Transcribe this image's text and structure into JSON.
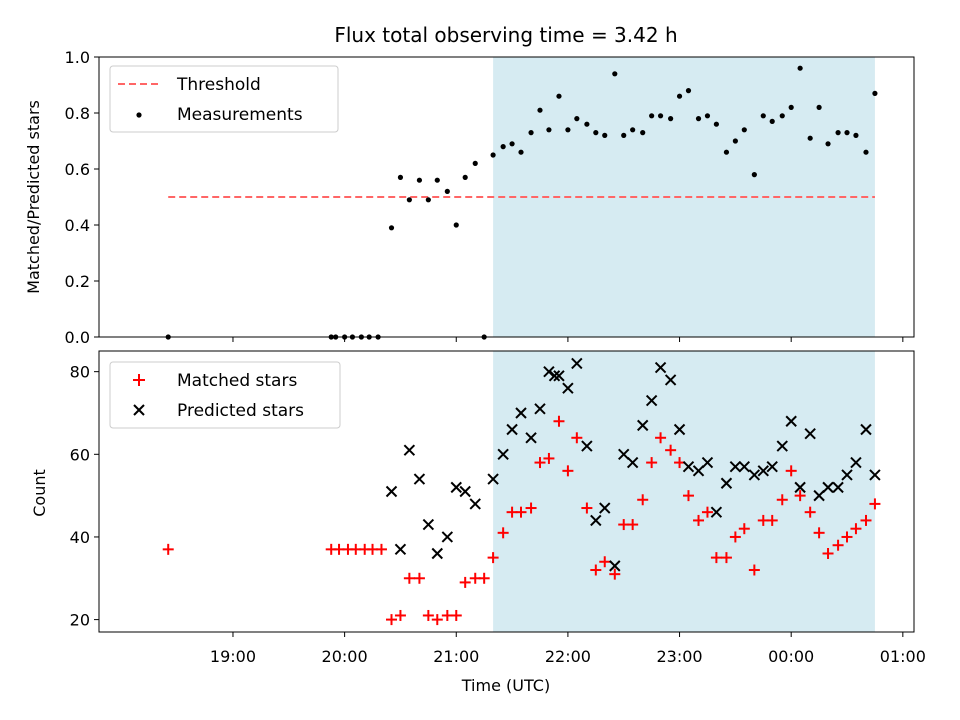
{
  "chart_data": [
    {
      "type": "scatter",
      "title": "Flux total observing time = 3.42 h",
      "ylabel": "Matched/Predicted stars",
      "xlabel": "",
      "x_unit": "hours since 18:00 UTC",
      "xlim": [
        17.8,
        25.1
      ],
      "ylim": [
        0.0,
        1.0
      ],
      "yticks": [
        0.0,
        0.2,
        0.4,
        0.6,
        0.8,
        1.0
      ],
      "ytick_labels": [
        "0.0",
        "0.2",
        "0.4",
        "0.6",
        "0.8",
        "1.0"
      ],
      "shaded_region": {
        "x": [
          21.33,
          24.75
        ],
        "color": "#add8e6"
      },
      "legend": {
        "position": "upper left",
        "entries": [
          "Threshold",
          "Measurements"
        ]
      },
      "series": [
        {
          "name": "Threshold",
          "kind": "line",
          "style": "dashed",
          "color": "#ff6666",
          "x": [
            18.42,
            24.75
          ],
          "y": [
            0.5,
            0.5
          ]
        },
        {
          "name": "Measurements",
          "kind": "points",
          "color": "#000000",
          "points": [
            [
              18.42,
              0.0
            ],
            [
              19.88,
              0.0
            ],
            [
              19.92,
              0.0
            ],
            [
              20.0,
              0.0
            ],
            [
              20.07,
              0.0
            ],
            [
              20.15,
              0.0
            ],
            [
              20.22,
              0.0
            ],
            [
              20.3,
              0.0
            ],
            [
              21.25,
              0.0
            ],
            [
              20.42,
              0.39
            ],
            [
              20.5,
              0.57
            ],
            [
              20.58,
              0.49
            ],
            [
              20.67,
              0.56
            ],
            [
              20.75,
              0.49
            ],
            [
              20.83,
              0.56
            ],
            [
              20.92,
              0.52
            ],
            [
              21.0,
              0.4
            ],
            [
              21.08,
              0.57
            ],
            [
              21.17,
              0.62
            ],
            [
              21.33,
              0.65
            ],
            [
              21.42,
              0.68
            ],
            [
              21.5,
              0.69
            ],
            [
              21.58,
              0.66
            ],
            [
              21.67,
              0.73
            ],
            [
              21.75,
              0.81
            ],
            [
              21.83,
              0.74
            ],
            [
              21.92,
              0.86
            ],
            [
              22.0,
              0.74
            ],
            [
              22.08,
              0.78
            ],
            [
              22.17,
              0.76
            ],
            [
              22.25,
              0.73
            ],
            [
              22.33,
              0.72
            ],
            [
              22.42,
              0.94
            ],
            [
              22.5,
              0.72
            ],
            [
              22.58,
              0.74
            ],
            [
              22.67,
              0.73
            ],
            [
              22.75,
              0.79
            ],
            [
              22.83,
              0.79
            ],
            [
              22.92,
              0.78
            ],
            [
              23.0,
              0.86
            ],
            [
              23.08,
              0.88
            ],
            [
              23.17,
              0.78
            ],
            [
              23.25,
              0.79
            ],
            [
              23.33,
              0.76
            ],
            [
              23.42,
              0.66
            ],
            [
              23.5,
              0.7
            ],
            [
              23.58,
              0.74
            ],
            [
              23.67,
              0.58
            ],
            [
              23.75,
              0.79
            ],
            [
              23.83,
              0.77
            ],
            [
              23.92,
              0.79
            ],
            [
              24.0,
              0.82
            ],
            [
              24.08,
              0.96
            ],
            [
              24.17,
              0.71
            ],
            [
              24.25,
              0.82
            ],
            [
              24.33,
              0.69
            ],
            [
              24.42,
              0.73
            ],
            [
              24.5,
              0.73
            ],
            [
              24.58,
              0.72
            ],
            [
              24.67,
              0.66
            ],
            [
              24.75,
              0.87
            ]
          ]
        }
      ]
    },
    {
      "type": "scatter",
      "title": "",
      "ylabel": "Count",
      "xlabel": "Time (UTC)",
      "x_unit": "hours since 18:00 UTC",
      "xlim": [
        17.8,
        25.1
      ],
      "ylim": [
        17,
        85
      ],
      "yticks": [
        20,
        40,
        60,
        80
      ],
      "ytick_labels": [
        "20",
        "40",
        "60",
        "80"
      ],
      "xticks": [
        19,
        20,
        21,
        22,
        23,
        24,
        25
      ],
      "xtick_labels": [
        "19:00",
        "20:00",
        "21:00",
        "22:00",
        "23:00",
        "00:00",
        "01:00"
      ],
      "shaded_region": {
        "x": [
          21.33,
          24.75
        ],
        "color": "#add8e6"
      },
      "legend": {
        "position": "upper left",
        "entries": [
          "Matched stars",
          "Predicted stars"
        ]
      },
      "series": [
        {
          "name": "Matched stars",
          "marker": "plus",
          "color": "#ff0000",
          "points": [
            [
              18.42,
              37
            ],
            [
              19.88,
              37
            ],
            [
              19.95,
              37
            ],
            [
              20.03,
              37
            ],
            [
              20.1,
              37
            ],
            [
              20.18,
              37
            ],
            [
              20.25,
              37
            ],
            [
              20.33,
              37
            ],
            [
              20.42,
              20
            ],
            [
              20.5,
              21
            ],
            [
              20.58,
              30
            ],
            [
              20.67,
              30
            ],
            [
              20.75,
              21
            ],
            [
              20.83,
              20
            ],
            [
              20.92,
              21
            ],
            [
              21.0,
              21
            ],
            [
              21.08,
              29
            ],
            [
              21.17,
              30
            ],
            [
              21.25,
              30
            ],
            [
              21.33,
              35
            ],
            [
              21.42,
              41
            ],
            [
              21.5,
              46
            ],
            [
              21.58,
              46
            ],
            [
              21.67,
              47
            ],
            [
              21.75,
              58
            ],
            [
              21.83,
              59
            ],
            [
              21.92,
              68
            ],
            [
              22.0,
              56
            ],
            [
              22.08,
              64
            ],
            [
              22.17,
              47
            ],
            [
              22.25,
              32
            ],
            [
              22.33,
              34
            ],
            [
              22.42,
              31
            ],
            [
              22.5,
              43
            ],
            [
              22.58,
              43
            ],
            [
              22.67,
              49
            ],
            [
              22.75,
              58
            ],
            [
              22.83,
              64
            ],
            [
              22.92,
              61
            ],
            [
              23.0,
              58
            ],
            [
              23.08,
              50
            ],
            [
              23.17,
              44
            ],
            [
              23.25,
              46
            ],
            [
              23.33,
              35
            ],
            [
              23.42,
              35
            ],
            [
              23.5,
              40
            ],
            [
              23.58,
              42
            ],
            [
              23.67,
              32
            ],
            [
              23.75,
              44
            ],
            [
              23.83,
              44
            ],
            [
              23.92,
              49
            ],
            [
              24.0,
              56
            ],
            [
              24.08,
              50
            ],
            [
              24.17,
              46
            ],
            [
              24.25,
              41
            ],
            [
              24.33,
              36
            ],
            [
              24.42,
              38
            ],
            [
              24.5,
              40
            ],
            [
              24.58,
              42
            ],
            [
              24.67,
              44
            ],
            [
              24.75,
              48
            ]
          ]
        },
        {
          "name": "Predicted stars",
          "marker": "x",
          "color": "#000000",
          "points": [
            [
              20.42,
              51
            ],
            [
              20.5,
              37
            ],
            [
              20.58,
              61
            ],
            [
              20.67,
              54
            ],
            [
              20.75,
              43
            ],
            [
              20.83,
              36
            ],
            [
              20.92,
              40
            ],
            [
              21.0,
              52
            ],
            [
              21.08,
              51
            ],
            [
              21.17,
              48
            ],
            [
              21.33,
              54
            ],
            [
              21.42,
              60
            ],
            [
              21.5,
              66
            ],
            [
              21.58,
              70
            ],
            [
              21.67,
              64
            ],
            [
              21.75,
              71
            ],
            [
              21.83,
              80
            ],
            [
              21.88,
              79
            ],
            [
              21.92,
              79
            ],
            [
              22.0,
              76
            ],
            [
              22.08,
              82
            ],
            [
              22.17,
              62
            ],
            [
              22.25,
              44
            ],
            [
              22.33,
              47
            ],
            [
              22.42,
              33
            ],
            [
              22.5,
              60
            ],
            [
              22.58,
              58
            ],
            [
              22.67,
              67
            ],
            [
              22.75,
              73
            ],
            [
              22.83,
              81
            ],
            [
              22.92,
              78
            ],
            [
              23.0,
              66
            ],
            [
              23.08,
              57
            ],
            [
              23.17,
              56
            ],
            [
              23.25,
              58
            ],
            [
              23.33,
              46
            ],
            [
              23.42,
              53
            ],
            [
              23.5,
              57
            ],
            [
              23.58,
              57
            ],
            [
              23.67,
              55
            ],
            [
              23.75,
              56
            ],
            [
              23.83,
              57
            ],
            [
              23.92,
              62
            ],
            [
              24.0,
              68
            ],
            [
              24.08,
              52
            ],
            [
              24.17,
              65
            ],
            [
              24.33,
              52
            ],
            [
              24.42,
              52
            ],
            [
              24.5,
              55
            ],
            [
              24.58,
              58
            ],
            [
              24.67,
              66
            ],
            [
              24.75,
              55
            ],
            [
              24.25,
              50
            ]
          ]
        }
      ]
    }
  ]
}
